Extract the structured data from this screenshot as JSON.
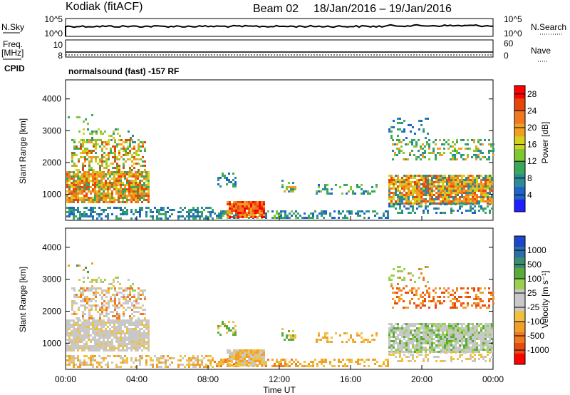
{
  "header": {
    "station": "Kodiak (fitACF)",
    "beam": "Beam 02",
    "date_range": "18/Jan/2016 – 19/Jan/2016"
  },
  "panels": {
    "nsky_label": "N.Sky",
    "nsearch_label": "N.Search",
    "freq_label_1": "Freq.",
    "freq_label_2": "[MHz]",
    "nave_label": "Nave",
    "cpid_label": "CPID",
    "cpid_value": "normalsound (fast) -157 RF",
    "noise_left_ticks": [
      "10^5",
      "10^0"
    ],
    "noise_right_ticks": [
      "10^5",
      "10^0"
    ],
    "freq_ticks": [
      "10",
      "8"
    ],
    "nave_ticks": [
      "60",
      "0"
    ]
  },
  "chart_data": [
    {
      "type": "heatmap",
      "name": "power",
      "ylabel": "Slant Range [km]",
      "ylim": [
        180,
        4600
      ],
      "y_ticks": [
        1000,
        2000,
        3000,
        4000
      ],
      "colorbar_label": "Power [dB]",
      "colorbar_ticks": [
        4,
        8,
        12,
        16,
        20,
        24,
        28
      ],
      "colorbar_range": [
        0,
        30
      ],
      "colors": [
        "#1f1fff",
        "#1e64c8",
        "#2a8c96",
        "#3aa85a",
        "#7fc832",
        "#d2d21e",
        "#f0a01e",
        "#f0781e",
        "#e6460a",
        "#ff0000"
      ]
    },
    {
      "type": "heatmap",
      "name": "velocity",
      "ylabel": "Slant Range [km]",
      "ylim": [
        180,
        4600
      ],
      "y_ticks": [
        1000,
        2000,
        3000,
        4000
      ],
      "colorbar_label": "Velocity [m s⁻¹]",
      "colorbar_ticks": [
        "1000",
        "500",
        "100",
        "25",
        "-25",
        "-100",
        "-500",
        "-1000"
      ],
      "colors": [
        "#1e46c8",
        "#2a6eaa",
        "#3c8c6e",
        "#5aaa3c",
        "#9ad050",
        "#c8c8c8",
        "#c8c8c8",
        "#f0c040",
        "#f0a028",
        "#f07820",
        "#e84a10",
        "#ff0000"
      ]
    }
  ],
  "x_axis": {
    "xlabel": "Time UT",
    "ticks": [
      "00:00",
      "04:00",
      "08:00",
      "12:00",
      "16:00",
      "20:00",
      "00:00"
    ]
  }
}
